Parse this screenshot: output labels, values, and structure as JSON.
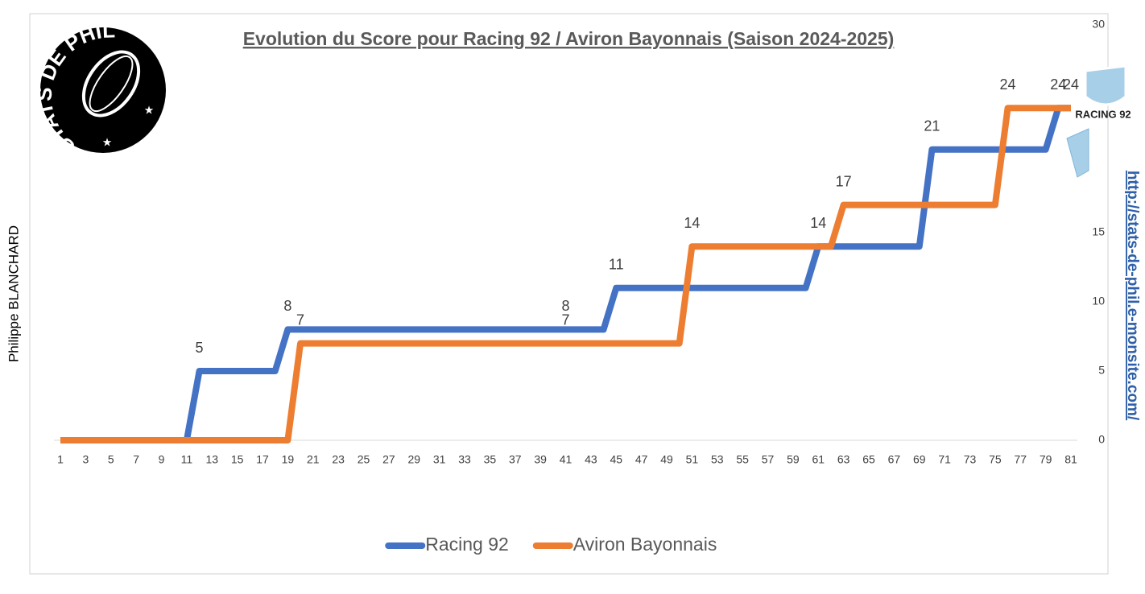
{
  "chart_data": {
    "type": "line",
    "title": "Evolution du Score pour Racing 92 / Aviron Bayonnais (Saison 2024-2025)",
    "author": "Philippe BLANCHARD",
    "url": "http://stats-de-phil.e-monsite.com/",
    "logo_text": "STATS DE PHIL",
    "team_logo_text": "RACING 92",
    "categories": [
      1,
      null,
      3,
      null,
      5,
      null,
      7,
      null,
      9,
      null,
      11,
      null,
      13,
      null,
      15,
      null,
      17,
      null,
      19,
      null,
      21,
      null,
      23,
      null,
      25,
      null,
      27,
      null,
      29,
      null,
      31,
      null,
      33,
      null,
      35,
      null,
      37,
      null,
      39,
      null,
      41,
      null,
      43,
      null,
      45,
      null,
      47,
      null,
      49,
      null,
      51,
      null,
      53,
      null,
      55,
      null,
      57,
      null,
      59,
      null,
      61,
      null,
      63,
      null,
      65,
      null,
      67,
      null,
      69,
      null,
      71,
      null,
      73,
      null,
      75,
      null,
      77,
      null,
      79,
      null,
      81
    ],
    "ylim": [
      0,
      30
    ],
    "yticks": [
      0,
      5,
      10,
      15,
      30
    ],
    "y_axis_side": "right",
    "grid": false,
    "legend": "bottom",
    "series": [
      {
        "name": "Racing 92",
        "color": "#4472c4",
        "values": [
          0,
          0,
          0,
          0,
          0,
          0,
          0,
          0,
          0,
          0,
          0,
          5,
          5,
          5,
          5,
          5,
          5,
          5,
          8,
          8,
          8,
          8,
          8,
          8,
          8,
          8,
          8,
          8,
          8,
          8,
          8,
          8,
          8,
          8,
          8,
          8,
          8,
          8,
          8,
          8,
          8,
          8,
          8,
          8,
          11,
          11,
          11,
          11,
          11,
          11,
          11,
          11,
          11,
          11,
          11,
          11,
          11,
          11,
          11,
          11,
          14,
          14,
          14,
          14,
          14,
          14,
          14,
          14,
          14,
          21,
          21,
          21,
          21,
          21,
          21,
          21,
          21,
          21,
          21,
          24,
          24
        ],
        "data_labels": [
          11,
          18,
          40,
          44,
          60,
          69,
          79
        ]
      },
      {
        "name": "Aviron Bayonnais",
        "color": "#ed7d31",
        "values": [
          0,
          0,
          0,
          0,
          0,
          0,
          0,
          0,
          0,
          0,
          0,
          0,
          0,
          0,
          0,
          0,
          0,
          0,
          0,
          7,
          7,
          7,
          7,
          7,
          7,
          7,
          7,
          7,
          7,
          7,
          7,
          7,
          7,
          7,
          7,
          7,
          7,
          7,
          7,
          7,
          7,
          7,
          7,
          7,
          7,
          7,
          7,
          7,
          7,
          7,
          14,
          14,
          14,
          14,
          14,
          14,
          14,
          14,
          14,
          14,
          14,
          14,
          17,
          17,
          17,
          17,
          17,
          17,
          17,
          17,
          17,
          17,
          17,
          17,
          17,
          24,
          24,
          24,
          24,
          24,
          24
        ],
        "data_labels": [
          19,
          40,
          50,
          62,
          75,
          80
        ]
      }
    ]
  }
}
